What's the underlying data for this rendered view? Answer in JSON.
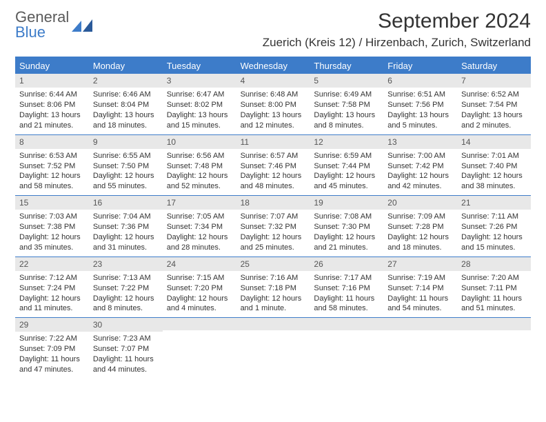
{
  "logo": {
    "general": "General",
    "blue": "Blue"
  },
  "title": "September 2024",
  "location": "Zuerich (Kreis 12) / Hirzenbach, Zurich, Switzerland",
  "day_names": [
    "Sunday",
    "Monday",
    "Tuesday",
    "Wednesday",
    "Thursday",
    "Friday",
    "Saturday"
  ],
  "colors": {
    "header_bg": "#3d7cc9",
    "header_text": "#ffffff",
    "daynum_bg": "#e8e8e8",
    "border": "#3d7cc9"
  },
  "weeks": [
    [
      {
        "n": "1",
        "sr": "Sunrise: 6:44 AM",
        "ss": "Sunset: 8:06 PM",
        "dl1": "Daylight: 13 hours",
        "dl2": "and 21 minutes."
      },
      {
        "n": "2",
        "sr": "Sunrise: 6:46 AM",
        "ss": "Sunset: 8:04 PM",
        "dl1": "Daylight: 13 hours",
        "dl2": "and 18 minutes."
      },
      {
        "n": "3",
        "sr": "Sunrise: 6:47 AM",
        "ss": "Sunset: 8:02 PM",
        "dl1": "Daylight: 13 hours",
        "dl2": "and 15 minutes."
      },
      {
        "n": "4",
        "sr": "Sunrise: 6:48 AM",
        "ss": "Sunset: 8:00 PM",
        "dl1": "Daylight: 13 hours",
        "dl2": "and 12 minutes."
      },
      {
        "n": "5",
        "sr": "Sunrise: 6:49 AM",
        "ss": "Sunset: 7:58 PM",
        "dl1": "Daylight: 13 hours",
        "dl2": "and 8 minutes."
      },
      {
        "n": "6",
        "sr": "Sunrise: 6:51 AM",
        "ss": "Sunset: 7:56 PM",
        "dl1": "Daylight: 13 hours",
        "dl2": "and 5 minutes."
      },
      {
        "n": "7",
        "sr": "Sunrise: 6:52 AM",
        "ss": "Sunset: 7:54 PM",
        "dl1": "Daylight: 13 hours",
        "dl2": "and 2 minutes."
      }
    ],
    [
      {
        "n": "8",
        "sr": "Sunrise: 6:53 AM",
        "ss": "Sunset: 7:52 PM",
        "dl1": "Daylight: 12 hours",
        "dl2": "and 58 minutes."
      },
      {
        "n": "9",
        "sr": "Sunrise: 6:55 AM",
        "ss": "Sunset: 7:50 PM",
        "dl1": "Daylight: 12 hours",
        "dl2": "and 55 minutes."
      },
      {
        "n": "10",
        "sr": "Sunrise: 6:56 AM",
        "ss": "Sunset: 7:48 PM",
        "dl1": "Daylight: 12 hours",
        "dl2": "and 52 minutes."
      },
      {
        "n": "11",
        "sr": "Sunrise: 6:57 AM",
        "ss": "Sunset: 7:46 PM",
        "dl1": "Daylight: 12 hours",
        "dl2": "and 48 minutes."
      },
      {
        "n": "12",
        "sr": "Sunrise: 6:59 AM",
        "ss": "Sunset: 7:44 PM",
        "dl1": "Daylight: 12 hours",
        "dl2": "and 45 minutes."
      },
      {
        "n": "13",
        "sr": "Sunrise: 7:00 AM",
        "ss": "Sunset: 7:42 PM",
        "dl1": "Daylight: 12 hours",
        "dl2": "and 42 minutes."
      },
      {
        "n": "14",
        "sr": "Sunrise: 7:01 AM",
        "ss": "Sunset: 7:40 PM",
        "dl1": "Daylight: 12 hours",
        "dl2": "and 38 minutes."
      }
    ],
    [
      {
        "n": "15",
        "sr": "Sunrise: 7:03 AM",
        "ss": "Sunset: 7:38 PM",
        "dl1": "Daylight: 12 hours",
        "dl2": "and 35 minutes."
      },
      {
        "n": "16",
        "sr": "Sunrise: 7:04 AM",
        "ss": "Sunset: 7:36 PM",
        "dl1": "Daylight: 12 hours",
        "dl2": "and 31 minutes."
      },
      {
        "n": "17",
        "sr": "Sunrise: 7:05 AM",
        "ss": "Sunset: 7:34 PM",
        "dl1": "Daylight: 12 hours",
        "dl2": "and 28 minutes."
      },
      {
        "n": "18",
        "sr": "Sunrise: 7:07 AM",
        "ss": "Sunset: 7:32 PM",
        "dl1": "Daylight: 12 hours",
        "dl2": "and 25 minutes."
      },
      {
        "n": "19",
        "sr": "Sunrise: 7:08 AM",
        "ss": "Sunset: 7:30 PM",
        "dl1": "Daylight: 12 hours",
        "dl2": "and 21 minutes."
      },
      {
        "n": "20",
        "sr": "Sunrise: 7:09 AM",
        "ss": "Sunset: 7:28 PM",
        "dl1": "Daylight: 12 hours",
        "dl2": "and 18 minutes."
      },
      {
        "n": "21",
        "sr": "Sunrise: 7:11 AM",
        "ss": "Sunset: 7:26 PM",
        "dl1": "Daylight: 12 hours",
        "dl2": "and 15 minutes."
      }
    ],
    [
      {
        "n": "22",
        "sr": "Sunrise: 7:12 AM",
        "ss": "Sunset: 7:24 PM",
        "dl1": "Daylight: 12 hours",
        "dl2": "and 11 minutes."
      },
      {
        "n": "23",
        "sr": "Sunrise: 7:13 AM",
        "ss": "Sunset: 7:22 PM",
        "dl1": "Daylight: 12 hours",
        "dl2": "and 8 minutes."
      },
      {
        "n": "24",
        "sr": "Sunrise: 7:15 AM",
        "ss": "Sunset: 7:20 PM",
        "dl1": "Daylight: 12 hours",
        "dl2": "and 4 minutes."
      },
      {
        "n": "25",
        "sr": "Sunrise: 7:16 AM",
        "ss": "Sunset: 7:18 PM",
        "dl1": "Daylight: 12 hours",
        "dl2": "and 1 minute."
      },
      {
        "n": "26",
        "sr": "Sunrise: 7:17 AM",
        "ss": "Sunset: 7:16 PM",
        "dl1": "Daylight: 11 hours",
        "dl2": "and 58 minutes."
      },
      {
        "n": "27",
        "sr": "Sunrise: 7:19 AM",
        "ss": "Sunset: 7:14 PM",
        "dl1": "Daylight: 11 hours",
        "dl2": "and 54 minutes."
      },
      {
        "n": "28",
        "sr": "Sunrise: 7:20 AM",
        "ss": "Sunset: 7:11 PM",
        "dl1": "Daylight: 11 hours",
        "dl2": "and 51 minutes."
      }
    ],
    [
      {
        "n": "29",
        "sr": "Sunrise: 7:22 AM",
        "ss": "Sunset: 7:09 PM",
        "dl1": "Daylight: 11 hours",
        "dl2": "and 47 minutes."
      },
      {
        "n": "30",
        "sr": "Sunrise: 7:23 AM",
        "ss": "Sunset: 7:07 PM",
        "dl1": "Daylight: 11 hours",
        "dl2": "and 44 minutes."
      },
      null,
      null,
      null,
      null,
      null
    ]
  ]
}
